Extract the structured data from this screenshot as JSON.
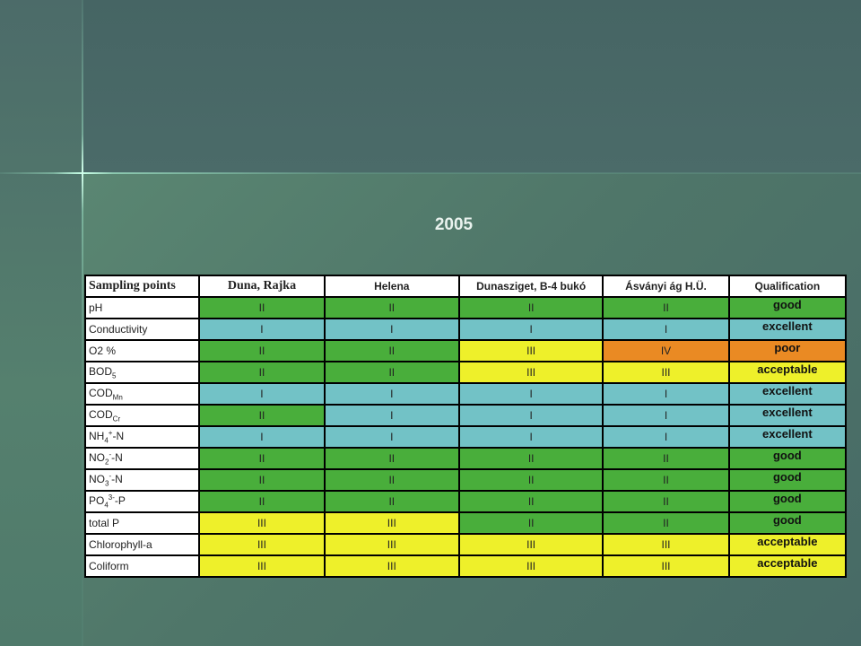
{
  "title": "2005",
  "headers": [
    "Sampling points",
    "Duna, Rajka",
    "Helena",
    "Dunasziget, B-4 bukó",
    "Ásványi ág H.Ü.",
    "Qualification"
  ],
  "rows": [
    {
      "param": "pH",
      "values": [
        "II",
        "II",
        "II",
        "II"
      ],
      "qualification": "good"
    },
    {
      "param": "Conductivity",
      "values": [
        "I",
        "I",
        "I",
        "I"
      ],
      "qualification": "excellent"
    },
    {
      "param": "O2 %",
      "values": [
        "II",
        "II",
        "III",
        "IV"
      ],
      "qualification": "poor"
    },
    {
      "param": "BOD5",
      "values": [
        "II",
        "II",
        "III",
        "III"
      ],
      "qualification": "acceptable"
    },
    {
      "param": "CODMn",
      "values": [
        "I",
        "I",
        "I",
        "I"
      ],
      "qualification": "excellent"
    },
    {
      "param": "CODCr",
      "values": [
        "II",
        "I",
        "I",
        "I"
      ],
      "qualification": "excellent"
    },
    {
      "param": "NH4+-N",
      "values": [
        "I",
        "I",
        "I",
        "I"
      ],
      "qualification": "excellent"
    },
    {
      "param": "NO2--N",
      "values": [
        "II",
        "II",
        "II",
        "II"
      ],
      "qualification": "good"
    },
    {
      "param": "NO3--N",
      "values": [
        "II",
        "II",
        "II",
        "II"
      ],
      "qualification": "good"
    },
    {
      "param": "PO43--P",
      "values": [
        "II",
        "II",
        "II",
        "II"
      ],
      "qualification": "good"
    },
    {
      "param": "total P",
      "values": [
        "III",
        "III",
        "II",
        "II"
      ],
      "qualification": "good"
    },
    {
      "param": "Chlorophyll-a",
      "values": [
        "III",
        "III",
        "III",
        "III"
      ],
      "qualification": "acceptable"
    },
    {
      "param": "Coliform",
      "values": [
        "III",
        "III",
        "III",
        "III"
      ],
      "qualification": "acceptable"
    }
  ],
  "colors": {
    "II": "#49ae3b",
    "I": "#72c2c6",
    "III": "#eef02a",
    "IV": "#ea8a23",
    "background": "#4a6866"
  }
}
